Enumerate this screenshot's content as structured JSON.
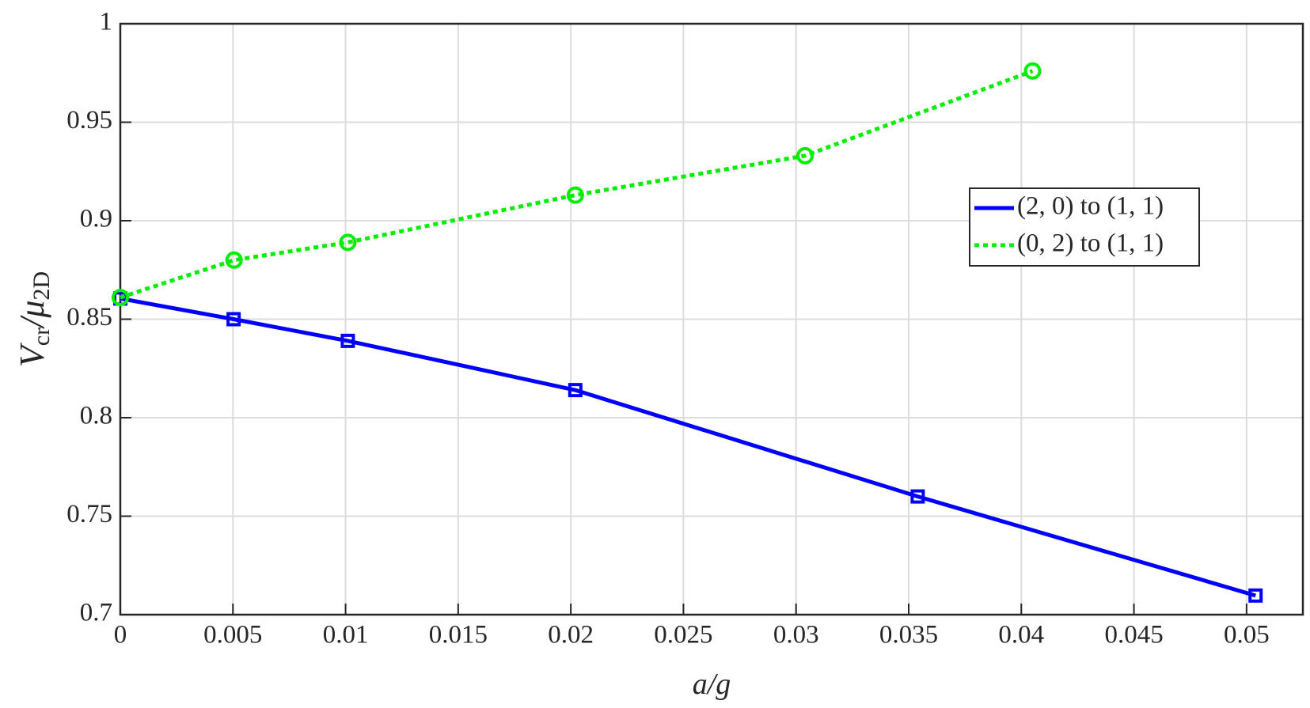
{
  "chart_data": {
    "type": "line",
    "xlabel": [
      "a",
      "/g"
    ],
    "ylabel": [
      "V",
      "cr",
      "/μ",
      "2D"
    ],
    "xlim": [
      0,
      0.0525
    ],
    "ylim": [
      0.7,
      1
    ],
    "xticks": [
      0,
      0.005,
      0.01,
      0.015,
      0.02,
      0.025,
      0.03,
      0.035,
      0.04,
      0.045,
      0.05
    ],
    "yticks": [
      0.7,
      0.75,
      0.8,
      0.85,
      0.9,
      0.95,
      1
    ],
    "grid": true,
    "legend_position": "east",
    "series": [
      {
        "name": "(2, 0) to (1, 1)",
        "color": "#0000ff",
        "line": "solid",
        "marker": "square",
        "x": [
          0,
          0.00503,
          0.0101,
          0.0202,
          0.0354,
          0.0504
        ],
        "values": [
          0.8605,
          0.85,
          0.839,
          0.814,
          0.76,
          0.7097
        ]
      },
      {
        "name": "(0, 2) to (1, 1)",
        "color": "#00ee00",
        "line": "dotted",
        "marker": "circle",
        "x": [
          0,
          0.00505,
          0.0101,
          0.0202,
          0.0304,
          0.0405
        ],
        "values": [
          0.861,
          0.88,
          0.889,
          0.913,
          0.933,
          0.976
        ]
      }
    ]
  }
}
